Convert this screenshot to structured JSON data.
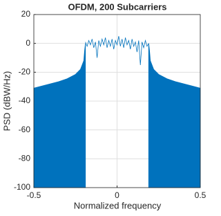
{
  "chart_data": {
    "type": "line",
    "title": "OFDM, 200 Subcarriers",
    "x_label": "Normalized frequency",
    "y_label": "PSD (dBW/Hz)",
    "xlim": [
      -0.5,
      0.5
    ],
    "xticks": [
      -0.5,
      0,
      0.5
    ],
    "ylim": [
      -100,
      20
    ],
    "yticks": [
      -100,
      -80,
      -60,
      -40,
      -20,
      0,
      20
    ],
    "grid": true,
    "series": [
      {
        "color": "#0072bd",
        "fill": true,
        "x": [
          -0.5,
          -0.45,
          -0.4,
          -0.35,
          -0.3,
          -0.25,
          -0.22,
          -0.2,
          -0.195,
          -0.19
        ],
        "values": [
          -31,
          -29.5,
          -28,
          -26.5,
          -24.5,
          -21.5,
          -18,
          -12,
          -5,
          0
        ]
      },
      {
        "color": "#0072bd",
        "fill": false,
        "x": [
          -0.19,
          -0.18,
          -0.17,
          -0.16,
          -0.15,
          -0.14,
          -0.13,
          -0.12,
          -0.11,
          -0.1,
          -0.09,
          -0.08,
          -0.07,
          -0.06,
          -0.05,
          -0.04,
          -0.03,
          -0.02,
          -0.01,
          0,
          0.01,
          0.02,
          0.03,
          0.04,
          0.05,
          0.06,
          0.07,
          0.08,
          0.09,
          0.1,
          0.11,
          0.12,
          0.13,
          0.14,
          0.15,
          0.16,
          0.17,
          0.18,
          0.19
        ],
        "values": [
          1,
          -2,
          2,
          -1,
          3,
          -3,
          1,
          -10,
          2,
          -2,
          3,
          -1,
          4,
          -3,
          2,
          -2,
          3,
          -4,
          2,
          -1,
          5,
          -2,
          3,
          -3,
          4,
          -1,
          2,
          -4,
          3,
          -2,
          1,
          -6,
          2,
          -15,
          1,
          -3,
          2,
          -2,
          0
        ]
      },
      {
        "color": "#0072bd",
        "fill": true,
        "x": [
          0.19,
          0.195,
          0.2,
          0.22,
          0.25,
          0.3,
          0.35,
          0.4,
          0.45,
          0.5
        ],
        "values": [
          0,
          -5,
          -12,
          -18,
          -21.5,
          -24.5,
          -26.5,
          -28,
          -29.5,
          -31
        ]
      }
    ]
  }
}
